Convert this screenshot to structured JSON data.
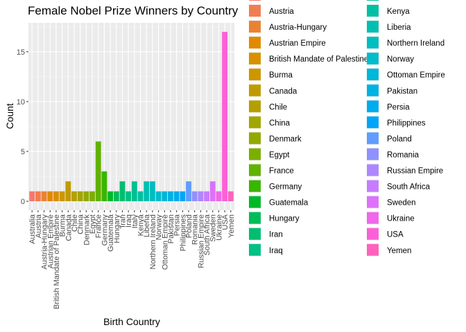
{
  "chart_data": {
    "type": "bar",
    "title": "Female Nobel Prize Winners by Country",
    "xlabel": "Birth Country",
    "ylabel": "Count",
    "ylim": [
      -0.9,
      17.9
    ],
    "yticks": [
      0,
      5,
      10,
      15
    ],
    "grid": true,
    "legend_position": "right",
    "categories": [
      "Australia",
      "Austria",
      "Austria-Hungary",
      "Austrian Empire",
      "British Mandate of Palestine",
      "Burma",
      "Canada",
      "Chile",
      "China",
      "Denmark",
      "Egypt",
      "France",
      "Germany",
      "Guatemala",
      "Hungary",
      "Iran",
      "Iraq",
      "Italy",
      "Kenya",
      "Liberia",
      "Northern Ireland",
      "Norway",
      "Ottoman Empire",
      "Pakistan",
      "Persia",
      "Philippines",
      "Poland",
      "Romania",
      "Russian Empire",
      "South Africa",
      "Sweden",
      "Ukraine",
      "USA",
      "Yemen"
    ],
    "values": [
      1,
      1,
      1,
      1,
      1,
      1,
      2,
      1,
      1,
      1,
      1,
      6,
      3,
      1,
      1,
      2,
      1,
      2,
      1,
      2,
      2,
      1,
      1,
      1,
      1,
      1,
      2,
      1,
      1,
      1,
      2,
      1,
      17,
      1
    ],
    "colors": [
      "#F8766D",
      "#F27D52",
      "#EA8331",
      "#E18A00",
      "#D89000",
      "#CD9600",
      "#C09B00",
      "#B3A000",
      "#A3A500",
      "#91AA00",
      "#7CAE00",
      "#62B200",
      "#39B600",
      "#00B929",
      "#00BC59",
      "#00BE70",
      "#00C083",
      "#00C094",
      "#00C0A3",
      "#00BFB2",
      "#00BDC0",
      "#00BBCD",
      "#00B6D9",
      "#00B1E4",
      "#00ABEE",
      "#00A5F8",
      "#619CFF",
      "#8F91FF",
      "#AE87FF",
      "#C77CFF",
      "#DD71FA",
      "#EF67EB",
      "#FB61D7",
      "#FF62BC"
    ],
    "legend_shown": [
      "Austria",
      "Austria-Hungary",
      "Austrian Empire",
      "British Mandate of Palestine",
      "Burma",
      "Canada",
      "Chile",
      "China",
      "Denmark",
      "Egypt",
      "France",
      "Germany",
      "Guatemala",
      "Hungary",
      "Iran",
      "Iraq",
      "Kenya",
      "Liberia",
      "Northern Ireland",
      "Norway",
      "Ottoman Empire",
      "Pakistan",
      "Persia",
      "Philippines",
      "Poland",
      "Romania",
      "Russian Empire",
      "South Africa",
      "Sweden",
      "Ukraine",
      "USA",
      "Yemen"
    ]
  }
}
